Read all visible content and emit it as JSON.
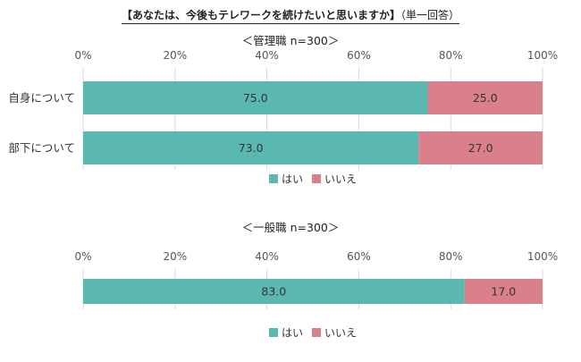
{
  "title": {
    "main": "【あなたは、今後もテレワークを続けたいと思いますか】",
    "note": "（単一回答）"
  },
  "chart_data": [
    {
      "type": "bar",
      "orientation": "horizontal",
      "stacked": "percent",
      "subtitle": "＜管理職 n=300＞",
      "categories": [
        "自身について",
        "部下について"
      ],
      "series": [
        {
          "name": "はい",
          "color": "#5bb8b0",
          "values": [
            75.0,
            73.0
          ]
        },
        {
          "name": "いいえ",
          "color": "#d9808a",
          "values": [
            25.0,
            27.0
          ]
        }
      ],
      "xlim": [
        0,
        100
      ],
      "xticks": [
        "0%",
        "20%",
        "40%",
        "60%",
        "80%",
        "100%"
      ],
      "grid": true,
      "legend": "bottom"
    },
    {
      "type": "bar",
      "orientation": "horizontal",
      "stacked": "percent",
      "subtitle": "＜一般職 n=300＞",
      "categories": [
        ""
      ],
      "series": [
        {
          "name": "はい",
          "color": "#5bb8b0",
          "values": [
            83.0
          ]
        },
        {
          "name": "いいえ",
          "color": "#d9808a",
          "values": [
            17.0
          ]
        }
      ],
      "xlim": [
        0,
        100
      ],
      "xticks": [
        "0%",
        "20%",
        "40%",
        "60%",
        "80%",
        "100%"
      ],
      "grid": true,
      "legend": "bottom"
    }
  ]
}
